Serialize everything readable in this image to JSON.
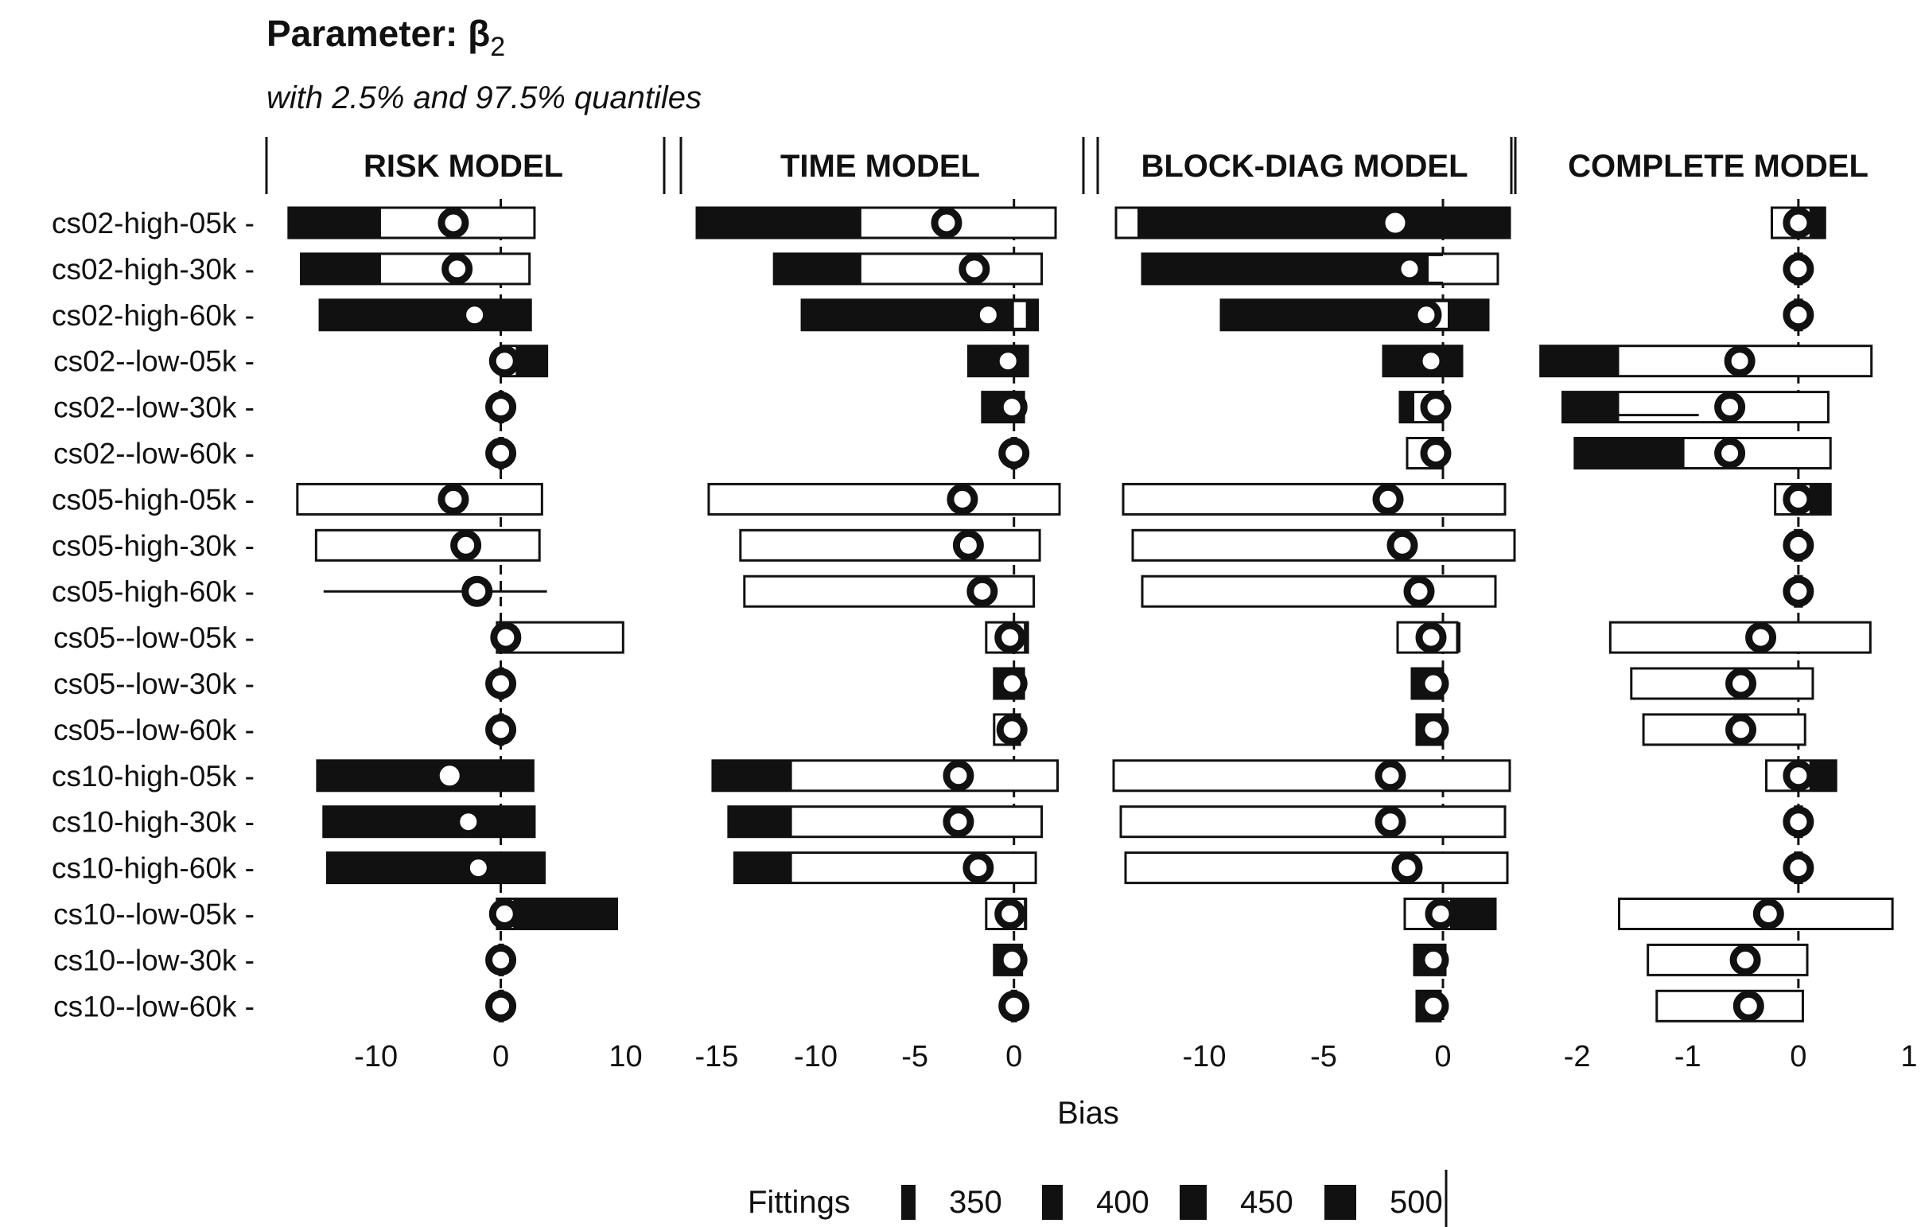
{
  "chart_data": {
    "type": "bar",
    "title": "Parameter: β",
    "title_subscript": "2",
    "subtitle": "with 2.5% and 97.5% quantiles",
    "xlabel": "Bias",
    "ylabel": "",
    "legend": {
      "title": "Fittings",
      "entries": [
        "350",
        "400",
        "450",
        "500"
      ],
      "placement": "bottom"
    },
    "grid": false,
    "rows": [
      "cs02-high-05k",
      "cs02-high-30k",
      "cs02-high-60k",
      "cs02--low-05k",
      "cs02--low-30k",
      "cs02--low-60k",
      "cs05-high-05k",
      "cs05-high-30k",
      "cs05-high-60k",
      "cs05--low-05k",
      "cs05--low-30k",
      "cs05--low-60k",
      "cs10-high-05k",
      "cs10-high-30k",
      "cs10-high-60k",
      "cs10--low-05k",
      "cs10--low-30k",
      "cs10--low-60k"
    ],
    "panels": [
      {
        "name": "RISK MODEL",
        "xlim": [
          -17.5,
          11.5
        ],
        "ticks": [
          -10,
          0,
          10
        ],
        "tick_labels": [
          "-10",
          "0",
          "10"
        ],
        "series": [
          {
            "row": "cs02-high-05k",
            "lo": -17.0,
            "hi": 2.7,
            "filled_to": -9.6,
            "mean": -3.8
          },
          {
            "row": "cs02-high-30k",
            "lo": -16.0,
            "hi": 2.3,
            "filled_to": -9.6,
            "mean": -3.5
          },
          {
            "row": "cs02-high-60k",
            "lo": -14.5,
            "hi": 2.4,
            "filled_to": 2.4,
            "mean": -2.1
          },
          {
            "row": "cs02--low-05k",
            "lo": 0.0,
            "hi": 3.7,
            "filled_to_lo": 1.2,
            "mean": 0.3
          },
          {
            "row": "cs02--low-30k",
            "lo": -0.1,
            "hi": 0.1,
            "filled_to": 0.1,
            "mean": 0.0
          },
          {
            "row": "cs02--low-60k",
            "lo": -0.1,
            "hi": 0.1,
            "filled_to": 0.1,
            "mean": 0.0
          },
          {
            "row": "cs05-high-05k",
            "lo": -16.3,
            "hi": 3.3,
            "mean": -3.8
          },
          {
            "row": "cs05-high-30k",
            "lo": -14.8,
            "hi": 3.1,
            "mean": -2.8
          },
          {
            "row": "cs05-high-60k",
            "lo": -14.2,
            "hi": 3.7,
            "mean": -1.9,
            "whisker_only": true
          },
          {
            "row": "cs05--low-05k",
            "lo": -0.3,
            "hi": 9.8,
            "mean": 0.4
          },
          {
            "row": "cs05--low-30k",
            "lo": -0.1,
            "hi": 0.1,
            "mean": 0.0
          },
          {
            "row": "cs05--low-60k",
            "lo": -0.1,
            "hi": 0.1,
            "mean": 0.0
          },
          {
            "row": "cs10-high-05k",
            "lo": -14.7,
            "hi": 2.6,
            "filled_to": 2.6,
            "mean": -4.1,
            "hollow_marker": true
          },
          {
            "row": "cs10-high-30k",
            "lo": -14.2,
            "hi": 2.7,
            "filled_to": 2.7,
            "mean": -2.6
          },
          {
            "row": "cs10-high-60k",
            "lo": -13.9,
            "hi": 3.5,
            "filled_to": 3.5,
            "mean": -1.8
          },
          {
            "row": "cs10--low-05k",
            "lo": -0.3,
            "hi": 9.3,
            "filled_to_lo": 1.0,
            "mean": 0.3
          },
          {
            "row": "cs10--low-30k",
            "lo": -0.1,
            "hi": 0.1,
            "mean": 0.0
          },
          {
            "row": "cs10--low-60k",
            "lo": -0.1,
            "hi": 0.1,
            "mean": 0.0
          }
        ]
      },
      {
        "name": "TIME MODEL",
        "xlim": [
          -16.0,
          2.5
        ],
        "ticks": [
          -15,
          -10,
          -5,
          0
        ],
        "tick_labels": [
          "-15",
          "-10",
          "-5",
          "0"
        ],
        "series": [
          {
            "row": "cs02-high-05k",
            "lo": -16.0,
            "hi": 2.1,
            "filled_to": -7.7,
            "mean": -3.4
          },
          {
            "row": "cs02-high-30k",
            "lo": -12.1,
            "hi": 1.4,
            "filled_to": -7.7,
            "mean": -2.0
          },
          {
            "row": "cs02-high-60k",
            "lo": -10.7,
            "hi": 1.2,
            "filled_to": 1.2,
            "mean": -1.3,
            "gap": [
              0.0,
              0.6
            ]
          },
          {
            "row": "cs02--low-05k",
            "lo": -2.3,
            "hi": 0.7,
            "filled_to": 0.7,
            "mean": -0.3
          },
          {
            "row": "cs02--low-30k",
            "lo": -1.6,
            "hi": 0.5,
            "filled_to": 0.5,
            "mean": -0.1
          },
          {
            "row": "cs02--low-60k",
            "lo": -0.1,
            "hi": 0.1,
            "mean": 0.0
          },
          {
            "row": "cs05-high-05k",
            "lo": -15.4,
            "hi": 2.3,
            "mean": -2.6
          },
          {
            "row": "cs05-high-30k",
            "lo": -13.8,
            "hi": 1.3,
            "mean": -2.3
          },
          {
            "row": "cs05-high-60k",
            "lo": -13.6,
            "hi": 1.0,
            "mean": -1.6
          },
          {
            "row": "cs05--low-05k",
            "lo": -1.4,
            "hi": 0.7,
            "filled_to_lo": 0.5,
            "mean": -0.2
          },
          {
            "row": "cs05--low-30k",
            "lo": -1.0,
            "hi": 0.5,
            "filled_to": 0.5,
            "mean": -0.1
          },
          {
            "row": "cs05--low-60k",
            "lo": -1.0,
            "hi": 0.3,
            "mean": -0.1
          },
          {
            "row": "cs10-high-05k",
            "lo": -15.2,
            "hi": 2.2,
            "filled_to": -11.2,
            "mean": -2.8
          },
          {
            "row": "cs10-high-30k",
            "lo": -14.4,
            "hi": 1.4,
            "filled_to": -11.2,
            "mean": -2.8
          },
          {
            "row": "cs10-high-60k",
            "lo": -14.1,
            "hi": 1.1,
            "filled_to": -11.2,
            "mean": -1.8
          },
          {
            "row": "cs10--low-05k",
            "lo": -1.4,
            "hi": 0.6,
            "filled_to_lo": 0.5,
            "mean": -0.2
          },
          {
            "row": "cs10--low-30k",
            "lo": -1.0,
            "hi": 0.4,
            "filled_to": 0.4,
            "mean": -0.1
          },
          {
            "row": "cs10--low-60k",
            "lo": -0.1,
            "hi": 0.1,
            "mean": 0.0
          }
        ]
      },
      {
        "name": "BLOCK-DIAG MODEL",
        "xlim": [
          -13.8,
          2.2
        ],
        "ticks": [
          -10,
          -5,
          0
        ],
        "tick_labels": [
          "-10",
          "-5",
          "0"
        ],
        "series": [
          {
            "row": "cs02-high-05k",
            "lo": -13.7,
            "hi": 2.8,
            "filled_from": -12.8,
            "filled_to": 2.8,
            "mean": -2.0,
            "hollow_marker": true
          },
          {
            "row": "cs02-high-30k",
            "lo": -12.6,
            "hi": 2.3,
            "filled_to": 0.0,
            "mean": -1.4,
            "gap": [
              -0.6,
              0.2
            ]
          },
          {
            "row": "cs02-high-60k",
            "lo": -9.3,
            "hi": 1.9,
            "filled_to": 1.9,
            "mean": -0.7,
            "gap": [
              -0.6,
              0.2
            ]
          },
          {
            "row": "cs02--low-05k",
            "lo": -2.5,
            "hi": 0.8,
            "filled_to": 0.8,
            "mean": -0.5
          },
          {
            "row": "cs02--low-30k",
            "lo": -1.8,
            "hi": 0.0,
            "filled_to": -1.2,
            "mean": -0.3
          },
          {
            "row": "cs02--low-60k",
            "lo": -1.5,
            "hi": 0.0,
            "mean": -0.3
          },
          {
            "row": "cs05-high-05k",
            "lo": -13.4,
            "hi": 2.6,
            "mean": -2.3
          },
          {
            "row": "cs05-high-30k",
            "lo": -13.0,
            "hi": 3.0,
            "mean": -1.7
          },
          {
            "row": "cs05-high-60k",
            "lo": -12.6,
            "hi": 2.2,
            "mean": -1.0
          },
          {
            "row": "cs05--low-05k",
            "lo": -1.9,
            "hi": 0.6,
            "filled_to_lo": 0.6,
            "mean": -0.5
          },
          {
            "row": "cs05--low-30k",
            "lo": -1.3,
            "hi": 0.0,
            "filled_to": 0.0,
            "mean": -0.4
          },
          {
            "row": "cs05--low-60k",
            "lo": -1.1,
            "hi": -0.1,
            "filled_to": -0.1,
            "mean": -0.4
          },
          {
            "row": "cs10-high-05k",
            "lo": -13.8,
            "hi": 2.8,
            "mean": -2.2
          },
          {
            "row": "cs10-high-30k",
            "lo": -13.5,
            "hi": 2.6,
            "mean": -2.2
          },
          {
            "row": "cs10-high-60k",
            "lo": -13.3,
            "hi": 2.7,
            "mean": -1.5
          },
          {
            "row": "cs10--low-05k",
            "lo": -1.6,
            "hi": 2.2,
            "filled_to_lo": 0.3,
            "mean": -0.1
          },
          {
            "row": "cs10--low-30k",
            "lo": -1.2,
            "hi": 0.1,
            "filled_to": 0.1,
            "mean": -0.4
          },
          {
            "row": "cs10--low-60k",
            "lo": -1.1,
            "hi": -0.1,
            "filled_to": -0.1,
            "mean": -0.4
          }
        ]
      },
      {
        "name": "COMPLETE MODEL",
        "xlim": [
          -2.45,
          1.0
        ],
        "ticks": [
          -2,
          -1,
          0,
          1
        ],
        "tick_labels": [
          "-2",
          "-1",
          "0",
          "1"
        ],
        "series": [
          {
            "row": "cs02-high-05k",
            "lo": -0.24,
            "hi": 0.24,
            "filled_to_lo": 0.1,
            "mean": 0.0
          },
          {
            "row": "cs02-high-30k",
            "lo": -0.03,
            "hi": 0.03,
            "mean": 0.0
          },
          {
            "row": "cs02-high-60k",
            "lo": -0.03,
            "hi": 0.03,
            "mean": 0.0
          },
          {
            "row": "cs02--low-05k",
            "lo": -2.33,
            "hi": 0.66,
            "filled_to": -1.62,
            "mean": -0.53
          },
          {
            "row": "cs02--low-30k",
            "lo": -2.13,
            "hi": 0.27,
            "filled_to": -1.62,
            "mean": -0.62,
            "whisker_mid": true
          },
          {
            "row": "cs02--low-60k",
            "lo": -2.02,
            "hi": 0.29,
            "filled_to": -1.03,
            "mean": -0.62
          },
          {
            "row": "cs05-high-05k",
            "lo": -0.21,
            "hi": 0.29,
            "filled_to_lo": 0.1,
            "mean": 0.0
          },
          {
            "row": "cs05-high-30k",
            "lo": -0.03,
            "hi": 0.03,
            "mean": 0.0
          },
          {
            "row": "cs05-high-60k",
            "lo": -0.03,
            "hi": 0.03,
            "mean": 0.0
          },
          {
            "row": "cs05--low-05k",
            "lo": -1.7,
            "hi": 0.65,
            "mean": -0.34
          },
          {
            "row": "cs05--low-30k",
            "lo": -1.51,
            "hi": 0.13,
            "mean": -0.52
          },
          {
            "row": "cs05--low-60k",
            "lo": -1.4,
            "hi": 0.06,
            "mean": -0.52
          },
          {
            "row": "cs10-high-05k",
            "lo": -0.29,
            "hi": 0.34,
            "filled_to_lo": 0.1,
            "mean": 0.0
          },
          {
            "row": "cs10-high-30k",
            "lo": -0.03,
            "hi": 0.03,
            "mean": 0.0
          },
          {
            "row": "cs10-high-60k",
            "lo": -0.03,
            "hi": 0.03,
            "mean": 0.0
          },
          {
            "row": "cs10--low-05k",
            "lo": -1.62,
            "hi": 0.85,
            "mean": -0.27
          },
          {
            "row": "cs10--low-30k",
            "lo": -1.36,
            "hi": 0.08,
            "mean": -0.48
          },
          {
            "row": "cs10--low-60k",
            "lo": -1.28,
            "hi": 0.04,
            "mean": -0.45
          }
        ]
      }
    ]
  }
}
